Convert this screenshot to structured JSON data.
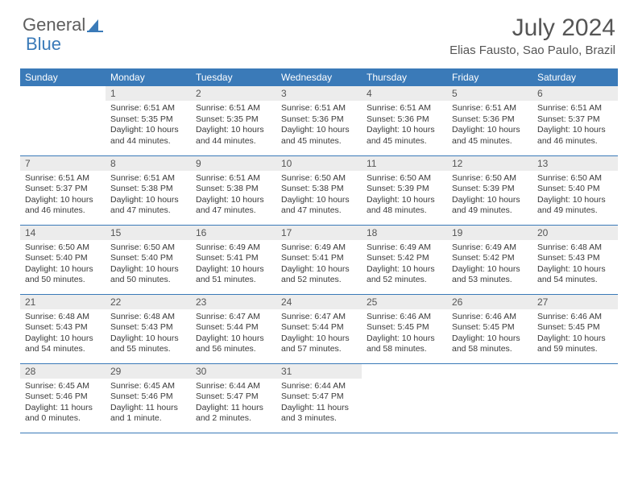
{
  "brand": {
    "part1": "General",
    "part2": "Blue"
  },
  "title": "July 2024",
  "location": "Elias Fausto, Sao Paulo, Brazil",
  "colors": {
    "header_bg": "#3a7ab8",
    "header_text": "#ffffff",
    "daynum_bg": "#ececec",
    "text": "#3a3a3a",
    "rule": "#3a7ab8",
    "page_bg": "#ffffff"
  },
  "typography": {
    "title_fontsize": 30,
    "location_fontsize": 15,
    "dayhead_fontsize": 12,
    "cell_fontsize": 10.5
  },
  "day_headers": [
    "Sunday",
    "Monday",
    "Tuesday",
    "Wednesday",
    "Thursday",
    "Friday",
    "Saturday"
  ],
  "weeks": [
    [
      null,
      {
        "n": "1",
        "sr": "6:51 AM",
        "ss": "5:35 PM",
        "dl": "10 hours and 44 minutes."
      },
      {
        "n": "2",
        "sr": "6:51 AM",
        "ss": "5:35 PM",
        "dl": "10 hours and 44 minutes."
      },
      {
        "n": "3",
        "sr": "6:51 AM",
        "ss": "5:36 PM",
        "dl": "10 hours and 45 minutes."
      },
      {
        "n": "4",
        "sr": "6:51 AM",
        "ss": "5:36 PM",
        "dl": "10 hours and 45 minutes."
      },
      {
        "n": "5",
        "sr": "6:51 AM",
        "ss": "5:36 PM",
        "dl": "10 hours and 45 minutes."
      },
      {
        "n": "6",
        "sr": "6:51 AM",
        "ss": "5:37 PM",
        "dl": "10 hours and 46 minutes."
      }
    ],
    [
      {
        "n": "7",
        "sr": "6:51 AM",
        "ss": "5:37 PM",
        "dl": "10 hours and 46 minutes."
      },
      {
        "n": "8",
        "sr": "6:51 AM",
        "ss": "5:38 PM",
        "dl": "10 hours and 47 minutes."
      },
      {
        "n": "9",
        "sr": "6:51 AM",
        "ss": "5:38 PM",
        "dl": "10 hours and 47 minutes."
      },
      {
        "n": "10",
        "sr": "6:50 AM",
        "ss": "5:38 PM",
        "dl": "10 hours and 47 minutes."
      },
      {
        "n": "11",
        "sr": "6:50 AM",
        "ss": "5:39 PM",
        "dl": "10 hours and 48 minutes."
      },
      {
        "n": "12",
        "sr": "6:50 AM",
        "ss": "5:39 PM",
        "dl": "10 hours and 49 minutes."
      },
      {
        "n": "13",
        "sr": "6:50 AM",
        "ss": "5:40 PM",
        "dl": "10 hours and 49 minutes."
      }
    ],
    [
      {
        "n": "14",
        "sr": "6:50 AM",
        "ss": "5:40 PM",
        "dl": "10 hours and 50 minutes."
      },
      {
        "n": "15",
        "sr": "6:50 AM",
        "ss": "5:40 PM",
        "dl": "10 hours and 50 minutes."
      },
      {
        "n": "16",
        "sr": "6:49 AM",
        "ss": "5:41 PM",
        "dl": "10 hours and 51 minutes."
      },
      {
        "n": "17",
        "sr": "6:49 AM",
        "ss": "5:41 PM",
        "dl": "10 hours and 52 minutes."
      },
      {
        "n": "18",
        "sr": "6:49 AM",
        "ss": "5:42 PM",
        "dl": "10 hours and 52 minutes."
      },
      {
        "n": "19",
        "sr": "6:49 AM",
        "ss": "5:42 PM",
        "dl": "10 hours and 53 minutes."
      },
      {
        "n": "20",
        "sr": "6:48 AM",
        "ss": "5:43 PM",
        "dl": "10 hours and 54 minutes."
      }
    ],
    [
      {
        "n": "21",
        "sr": "6:48 AM",
        "ss": "5:43 PM",
        "dl": "10 hours and 54 minutes."
      },
      {
        "n": "22",
        "sr": "6:48 AM",
        "ss": "5:43 PM",
        "dl": "10 hours and 55 minutes."
      },
      {
        "n": "23",
        "sr": "6:47 AM",
        "ss": "5:44 PM",
        "dl": "10 hours and 56 minutes."
      },
      {
        "n": "24",
        "sr": "6:47 AM",
        "ss": "5:44 PM",
        "dl": "10 hours and 57 minutes."
      },
      {
        "n": "25",
        "sr": "6:46 AM",
        "ss": "5:45 PM",
        "dl": "10 hours and 58 minutes."
      },
      {
        "n": "26",
        "sr": "6:46 AM",
        "ss": "5:45 PM",
        "dl": "10 hours and 58 minutes."
      },
      {
        "n": "27",
        "sr": "6:46 AM",
        "ss": "5:45 PM",
        "dl": "10 hours and 59 minutes."
      }
    ],
    [
      {
        "n": "28",
        "sr": "6:45 AM",
        "ss": "5:46 PM",
        "dl": "11 hours and 0 minutes."
      },
      {
        "n": "29",
        "sr": "6:45 AM",
        "ss": "5:46 PM",
        "dl": "11 hours and 1 minute."
      },
      {
        "n": "30",
        "sr": "6:44 AM",
        "ss": "5:47 PM",
        "dl": "11 hours and 2 minutes."
      },
      {
        "n": "31",
        "sr": "6:44 AM",
        "ss": "5:47 PM",
        "dl": "11 hours and 3 minutes."
      },
      null,
      null,
      null
    ]
  ],
  "labels": {
    "sunrise": "Sunrise:",
    "sunset": "Sunset:",
    "daylight": "Daylight:"
  }
}
